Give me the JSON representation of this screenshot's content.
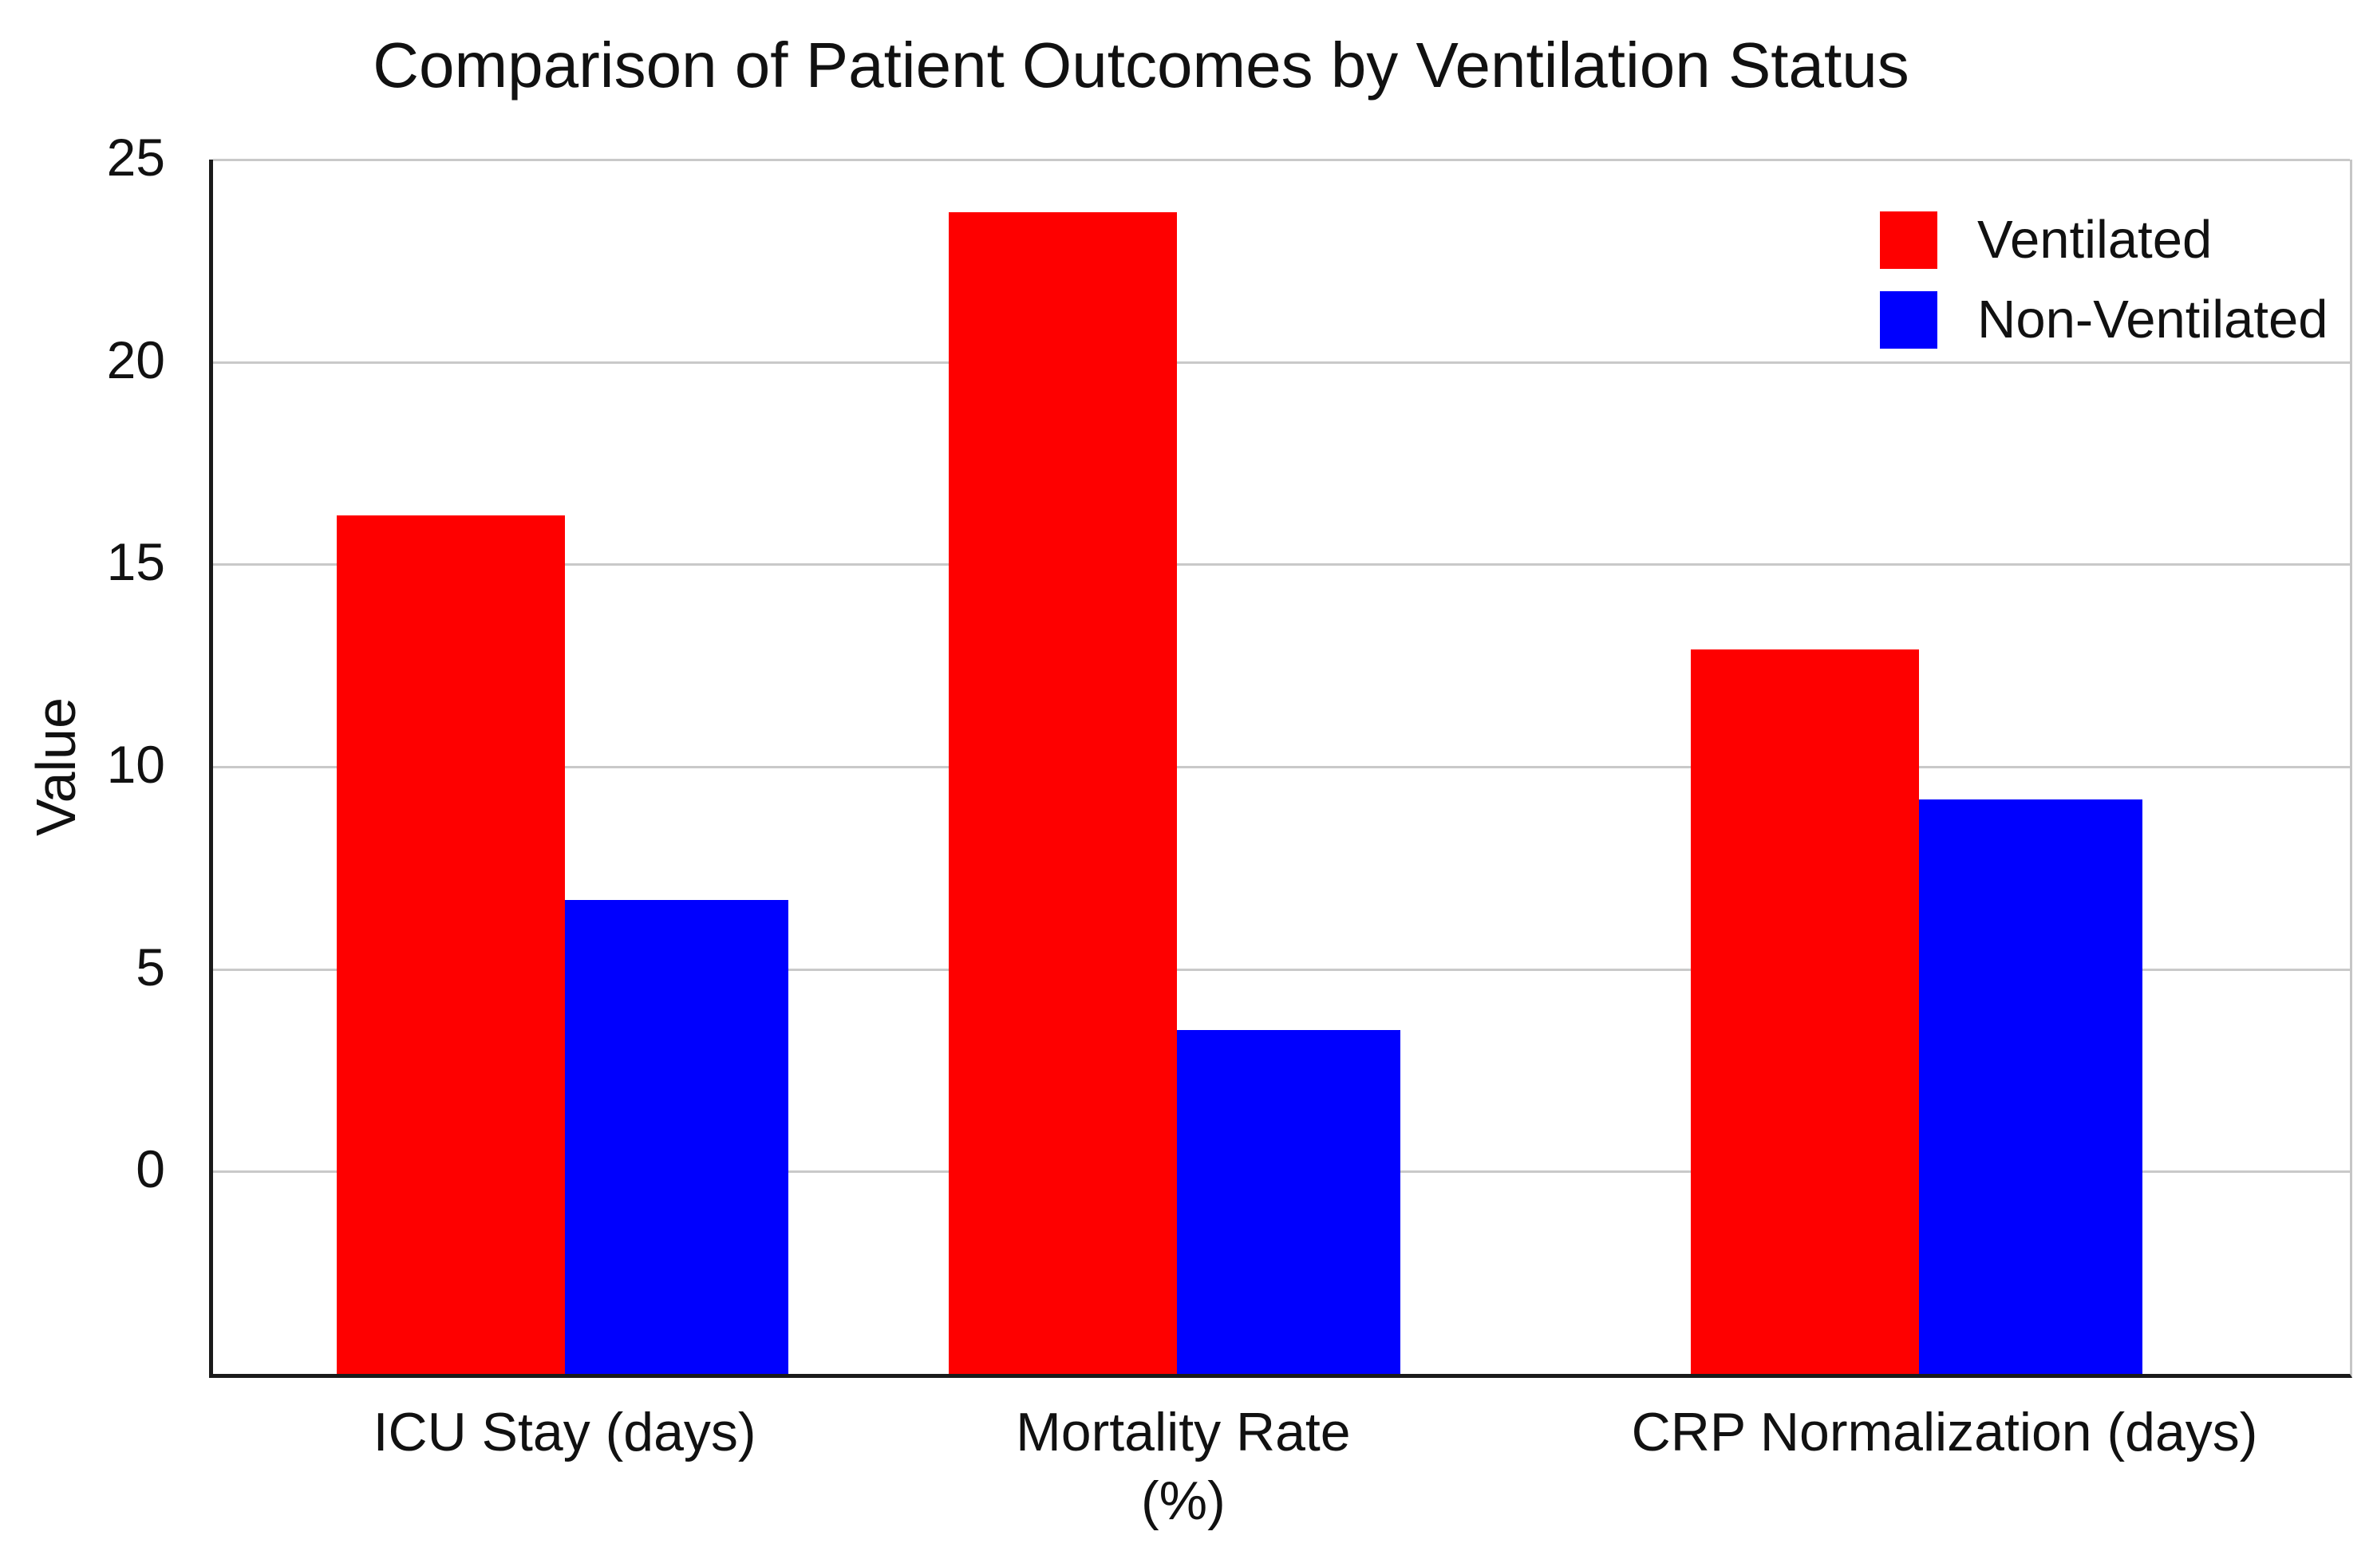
{
  "title": "Comparison of Patient Outcomes by Ventilation Status",
  "y_axis": {
    "label": "Value"
  },
  "legend": {
    "items": [
      {
        "label": "Ventilated",
        "color": "#fe0000"
      },
      {
        "label": "Non-Ventilated",
        "color": "#0000fe"
      }
    ]
  },
  "chart_data": {
    "type": "bar",
    "title": "Comparison of Patient Outcomes by Ventilation Status",
    "categories": [
      "ICU Stay (days)",
      "Mortality Rate (%)",
      "CRP Normalization (days)"
    ],
    "category_label_lines": [
      [
        "ICU Stay (days)"
      ],
      [
        "Mortality Rate",
        "(%)"
      ],
      [
        "CRP Normalization (days)"
      ]
    ],
    "series": [
      {
        "name": "Ventilated",
        "color": "#fe0000",
        "values": [
          16.2,
          23.7,
          12.9
        ]
      },
      {
        "name": "Non-Ventilated",
        "color": "#0000fe",
        "values": [
          6.7,
          3.5,
          9.2
        ]
      }
    ],
    "xlabel": "",
    "ylabel": "Value",
    "ylim": [
      -5,
      25
    ],
    "yticks": [
      25,
      20,
      15,
      10,
      5,
      0
    ],
    "bars_baseline": -5,
    "grid": true,
    "gridline_color": "#c9c9c9",
    "legend_position": "top-right"
  }
}
